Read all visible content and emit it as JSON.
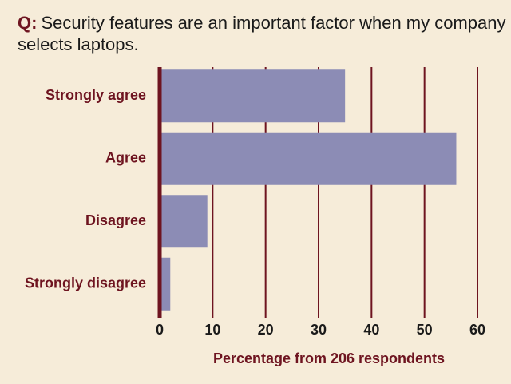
{
  "chart_data": {
    "type": "hbar",
    "title_prefix": "Q:",
    "title": "Security features are an important factor when my company selects laptops.",
    "categories": [
      "Strongly agree",
      "Agree",
      "Disagree",
      "Strongly disagree"
    ],
    "values": [
      35,
      56,
      9,
      2
    ],
    "color": "#8c8cb5",
    "xlim": [
      0,
      60
    ],
    "xticks": [
      0,
      10,
      20,
      30,
      40,
      50,
      60
    ],
    "x_label": "Percentage from 206 respondents",
    "grid": true
  }
}
